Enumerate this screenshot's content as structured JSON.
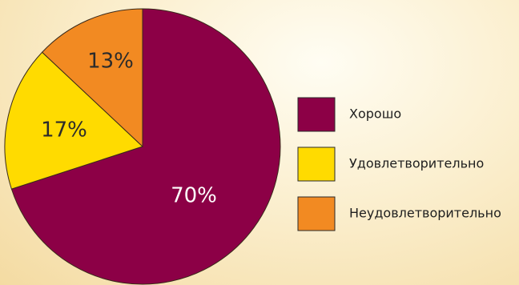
{
  "chart_data": {
    "type": "pie",
    "title": "",
    "slices": [
      {
        "label": "Хорошо",
        "value": 70,
        "display": "70%",
        "color": "#8c0046"
      },
      {
        "label": "Удовлетворительно",
        "value": 17,
        "display": "17%",
        "color": "#ffdb00"
      },
      {
        "label": "Неудовлетворительно",
        "value": 13,
        "display": "13%",
        "color": "#f28a22"
      }
    ],
    "legend_position": "right"
  }
}
